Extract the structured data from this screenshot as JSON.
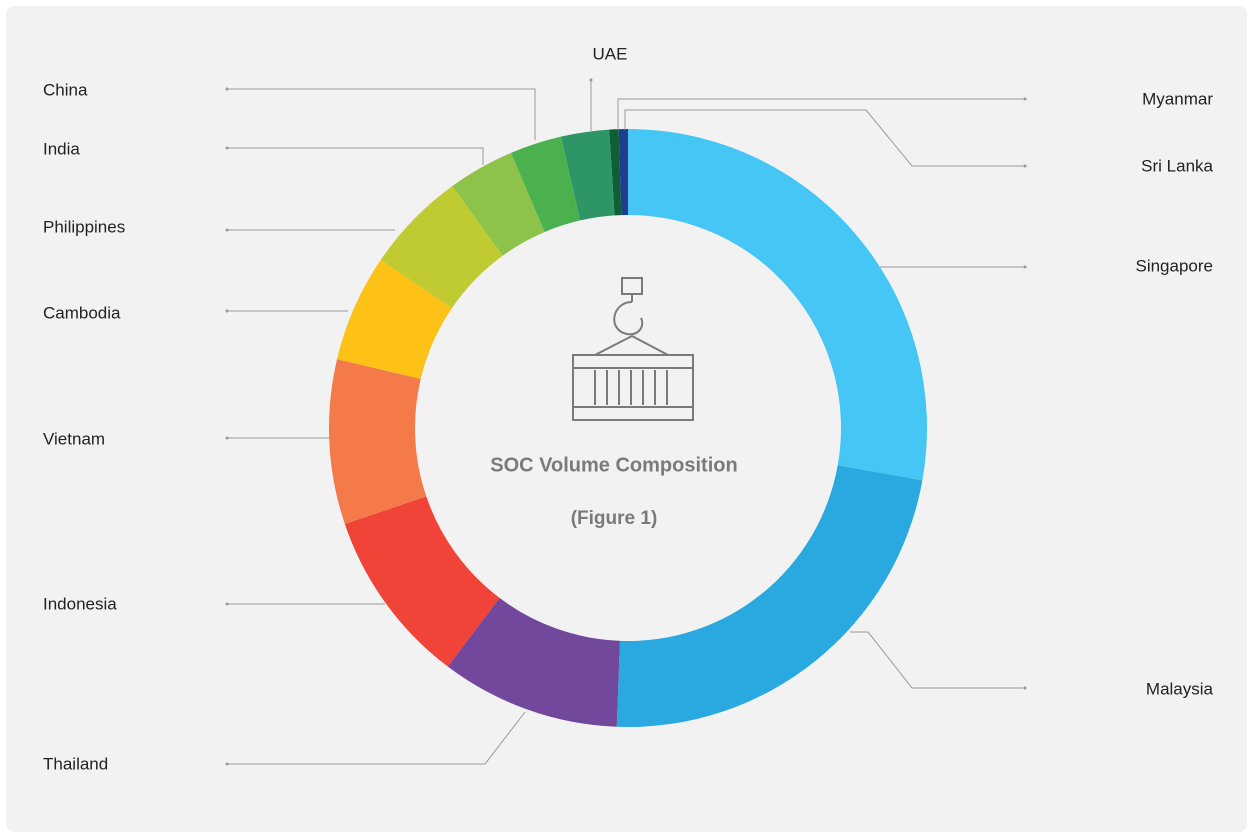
{
  "chart_data": {
    "type": "donut",
    "title": "SOC Volume Composition",
    "subtitle": "(Figure 1)",
    "categories": [
      "Singapore",
      "Malaysia",
      "Thailand",
      "Indonesia",
      "Vietnam",
      "Cambodia",
      "Philippines",
      "India",
      "China",
      "UAE",
      "Myanmar",
      "Sri Lanka"
    ],
    "values": [
      27.8,
      22.8,
      9.7,
      9.5,
      8.9,
      5.8,
      5.5,
      3.6,
      2.8,
      2.6,
      0.5,
      0.5
    ],
    "colors": [
      "#45c6f5",
      "#29a9e0",
      "#72489c",
      "#ef4437",
      "#f47a4a",
      "#fdc215",
      "#bfcb30",
      "#8dc24b",
      "#4bb14f",
      "#2e9566",
      "#0f5e36",
      "#1f3e8f"
    ]
  }
}
